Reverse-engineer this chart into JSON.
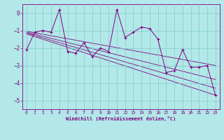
{
  "x": [
    0,
    1,
    2,
    3,
    4,
    5,
    6,
    7,
    8,
    9,
    10,
    11,
    12,
    13,
    14,
    15,
    16,
    17,
    18,
    19,
    20,
    21,
    22,
    23
  ],
  "y_main": [
    -2.1,
    -1.1,
    -1.0,
    -1.1,
    0.2,
    -2.2,
    -2.3,
    -1.7,
    -2.5,
    -2.0,
    -2.2,
    0.2,
    -1.4,
    -1.1,
    -0.8,
    -0.9,
    -1.5,
    -3.4,
    -3.3,
    -2.1,
    -3.1,
    -3.1,
    -3.0,
    -4.7
  ],
  "trend_lines": [
    [
      0,
      23,
      -1.05,
      -3.0
    ],
    [
      0,
      23,
      -1.1,
      -3.8
    ],
    [
      0,
      23,
      -1.15,
      -4.3
    ],
    [
      0,
      23,
      -1.2,
      -4.7
    ]
  ],
  "line_color": "#800080",
  "bg_color": "#b2e8e8",
  "grid_color": "#80cccc",
  "xlabel": "Windchill (Refroidissement éolien,°C)",
  "xlim": [
    -0.5,
    23.5
  ],
  "ylim": [
    -5.5,
    0.5
  ],
  "yticks": [
    0,
    -1,
    -2,
    -3,
    -4,
    -5
  ],
  "xticks": [
    0,
    1,
    2,
    3,
    4,
    5,
    6,
    7,
    8,
    9,
    10,
    11,
    12,
    13,
    14,
    15,
    16,
    17,
    18,
    19,
    20,
    21,
    22,
    23
  ],
  "figsize": [
    3.2,
    2.0
  ],
  "dpi": 100
}
